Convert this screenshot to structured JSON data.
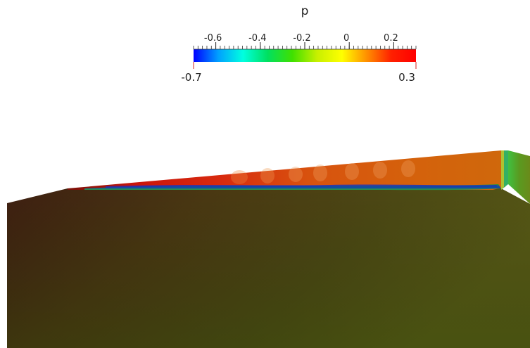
{
  "colorbar": {
    "title": "p",
    "min_label": "-0.7",
    "max_label": "0.3",
    "min": -0.7,
    "max": 0.3,
    "ticks": [
      {
        "value": -0.6,
        "label": "-0.6"
      },
      {
        "value": -0.4,
        "label": "-0.4"
      },
      {
        "value": -0.2,
        "label": "-0.2"
      },
      {
        "value": 0.0,
        "label": "0"
      },
      {
        "value": 0.2,
        "label": "0.2"
      }
    ],
    "colormap": [
      "#0000ff",
      "#00a0ff",
      "#00ffe0",
      "#00e060",
      "#40e000",
      "#c8f000",
      "#ffff00",
      "#ff9000",
      "#ff2000",
      "#ff0000"
    ]
  },
  "scene": {
    "surface_color_dark": "#3a1e12",
    "surface_color_mid": "#4a4a12",
    "surface_color_light": "#5a5a14",
    "strip_color_left": "#d8140a",
    "strip_color_right": "#d0650a"
  }
}
